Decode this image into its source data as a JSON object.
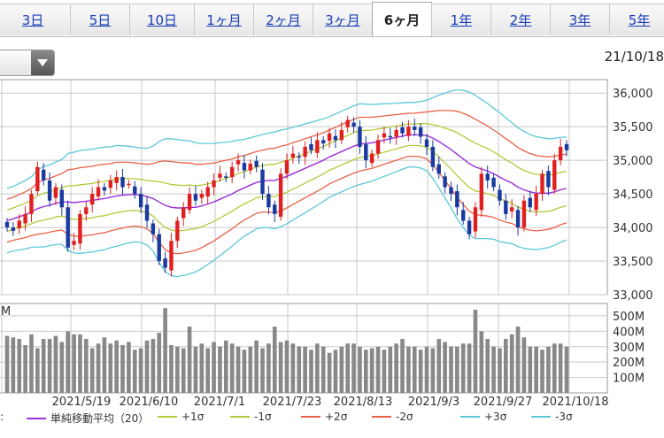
{
  "tabs": [
    "3日",
    "5日",
    "10日",
    "1ヶ月",
    "2ヶ月",
    "3ヶ月",
    "6ヶ月",
    "1年",
    "2年",
    "3年",
    "5年"
  ],
  "active_tab": "6ヶ月",
  "date": "21/10/18",
  "dropdown_icon": "chevron-down-icon",
  "legend_prefix": ":",
  "legend": [
    {
      "label": "単純移動平均（20）",
      "color": "#9b30d9"
    },
    {
      "label": "+1σ",
      "color": "#b5c93a"
    },
    {
      "label": "-1σ",
      "color": "#b5c93a"
    },
    {
      "label": "+2σ",
      "color": "#e8634a"
    },
    {
      "label": "-2σ",
      "color": "#e8634a"
    },
    {
      "label": "+3σ",
      "color": "#5cc8d8"
    },
    {
      "label": "-3σ",
      "color": "#5cc8d8"
    }
  ],
  "colors": {
    "up": "#e02020",
    "down": "#1a3aa0",
    "volume": "#888888",
    "grid": "#c8c8c8"
  },
  "chart_data": [
    {
      "type": "candlestick",
      "title": "",
      "x_ticks": [
        "2021/5/19",
        "2021/6/10",
        "2021/7/1",
        "2021/7/23",
        "2021/8/13",
        "2021/9/3",
        "2021/9/27",
        "2021/10/18"
      ],
      "y_ticks": [
        "36,000",
        "35,500",
        "35,000",
        "34,500",
        "34,000",
        "33,500",
        "33,000"
      ],
      "ylim": [
        33000,
        36200
      ],
      "close_series": [
        34000,
        33950,
        34100,
        34200,
        34500,
        34900,
        34700,
        34400,
        34600,
        34300,
        33700,
        33800,
        34200,
        34300,
        34500,
        34600,
        34550,
        34700,
        34750,
        34600,
        34650,
        34500,
        34300,
        34100,
        33900,
        33500,
        33400,
        33800,
        34100,
        34300,
        34500,
        34400,
        34500,
        34600,
        34700,
        34800,
        34750,
        34900,
        35000,
        34850,
        34950,
        34900,
        34500,
        34300,
        34200,
        34800,
        35000,
        35100,
        35050,
        35200,
        35150,
        35300,
        35250,
        35400,
        35300,
        35450,
        35600,
        35500,
        35200,
        35000,
        35100,
        35300,
        35400,
        35350,
        35450,
        35400,
        35500,
        35450,
        35350,
        35200,
        34900,
        34800,
        34600,
        34500,
        34300,
        34100,
        33900,
        34300,
        34800,
        34700,
        34600,
        34400,
        34200,
        34300,
        34000,
        34400,
        34300,
        34500,
        34800,
        34600,
        35000,
        35200,
        35150
      ],
      "middle_band": [
        34100,
        34130,
        34160,
        34190,
        34230,
        34280,
        34310,
        34330,
        34360,
        34380,
        34380,
        34370,
        34380,
        34390,
        34400,
        34420,
        34430,
        34450,
        34470,
        34480,
        34490,
        34490,
        34480,
        34460,
        34430,
        34380,
        34330,
        34300,
        34290,
        34290,
        34300,
        34300,
        34320,
        34350,
        34380,
        34420,
        34460,
        34500,
        34550,
        34590,
        34630,
        34670,
        34690,
        34700,
        34700,
        34730,
        34760,
        34800,
        34840,
        34880,
        34920,
        34960,
        35000,
        35050,
        35090,
        35130,
        35170,
        35210,
        35240,
        35250,
        35260,
        35280,
        35300,
        35320,
        35340,
        35360,
        35380,
        35380,
        35380,
        35370,
        35330,
        35280,
        35220,
        35160,
        35090,
        35020,
        34950,
        34900,
        34870,
        34840,
        34800,
        34750,
        34700,
        34660,
        34600,
        34560,
        34530,
        34510,
        34510,
        34510,
        34530,
        34560,
        34580
      ],
      "band_sigma": [
        160,
        160,
        165,
        170,
        175,
        190,
        200,
        200,
        205,
        210,
        240,
        250,
        255,
        255,
        255,
        255,
        255,
        250,
        250,
        245,
        240,
        235,
        235,
        240,
        260,
        300,
        330,
        340,
        340,
        335,
        330,
        320,
        310,
        300,
        290,
        280,
        270,
        260,
        250,
        240,
        235,
        230,
        230,
        235,
        240,
        240,
        235,
        230,
        225,
        220,
        215,
        210,
        205,
        200,
        200,
        200,
        200,
        200,
        200,
        195,
        190,
        185,
        180,
        175,
        170,
        165,
        160,
        160,
        165,
        175,
        200,
        230,
        260,
        290,
        320,
        340,
        355,
        355,
        345,
        335,
        325,
        320,
        310,
        300,
        295,
        290,
        285,
        280,
        275,
        270,
        265,
        260,
        255
      ],
      "volume_yticks": [
        "500M",
        "400M",
        "300M",
        "200M",
        "100M"
      ],
      "volume_ylim": [
        0,
        580
      ],
      "volume_unit_label": "M",
      "volume_values": [
        370,
        360,
        350,
        310,
        380,
        290,
        350,
        350,
        370,
        330,
        400,
        380,
        380,
        350,
        290,
        320,
        360,
        320,
        340,
        310,
        330,
        280,
        290,
        340,
        350,
        390,
        550,
        310,
        300,
        290,
        430,
        300,
        320,
        290,
        330,
        300,
        340,
        320,
        300,
        280,
        300,
        340,
        290,
        320,
        430,
        330,
        340,
        320,
        300,
        300,
        280,
        320,
        300,
        260,
        280,
        300,
        320,
        320,
        300,
        280,
        290,
        300,
        280,
        300,
        320,
        350,
        300,
        300,
        280,
        300,
        290,
        350,
        330,
        300,
        300,
        320,
        320,
        540,
        400,
        350,
        300,
        290,
        350,
        380,
        430,
        360,
        300,
        300,
        280,
        300,
        320,
        320,
        300
      ]
    }
  ]
}
